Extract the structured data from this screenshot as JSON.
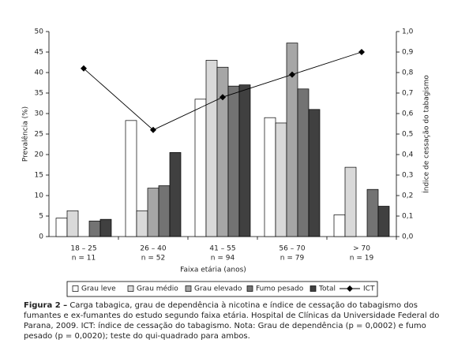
{
  "chart_data": {
    "type": "bar",
    "categories": [
      "18 – 25",
      "26 – 40",
      "41 – 55",
      "56 – 70",
      "> 70"
    ],
    "category_counts": [
      "n = 11",
      "n = 52",
      "n = 94",
      "n = 79",
      "n = 19"
    ],
    "xlabel": "Faixa etária (anos)",
    "ylabel": "Prevalência (%)",
    "y2label": "Índice de cessação do tabagismo",
    "ylim": [
      0,
      50
    ],
    "yticks": [
      0,
      5,
      10,
      15,
      20,
      25,
      30,
      35,
      40,
      45,
      50
    ],
    "y2lim": [
      0,
      1
    ],
    "y2ticks": [
      {
        "value": 0,
        "label": "0,0"
      },
      {
        "value": 0.1,
        "label": "0,1"
      },
      {
        "value": 0.2,
        "label": "0,2"
      },
      {
        "value": 0.3,
        "label": "0,3"
      },
      {
        "value": 0.4,
        "label": "0,4"
      },
      {
        "value": 0.5,
        "label": "0,5"
      },
      {
        "value": 0.6,
        "label": "0,6"
      },
      {
        "value": 0.7,
        "label": "0,7"
      },
      {
        "value": 0.8,
        "label": "0,8"
      },
      {
        "value": 0.9,
        "label": "0,9"
      },
      {
        "value": 1,
        "label": "1,0"
      }
    ],
    "series": [
      {
        "name": "Grau leve",
        "color": "#ffffff",
        "values": [
          4.5,
          28.3,
          33.5,
          29,
          5.3
        ]
      },
      {
        "name": "Grau médio",
        "color": "#d9d9d9",
        "values": [
          6.3,
          6.3,
          43,
          27.7,
          16.9
        ]
      },
      {
        "name": "Grau elevado",
        "color": "#a6a6a6",
        "values": [
          0,
          11.8,
          41.3,
          47.2,
          0
        ]
      },
      {
        "name": "Fumo pesado",
        "color": "#737373",
        "values": [
          3.8,
          12.4,
          36.7,
          36,
          11.5
        ]
      },
      {
        "name": "Total",
        "color": "#404040",
        "values": [
          4.2,
          20.5,
          37,
          31,
          7.4
        ]
      },
      {
        "name": "ICT",
        "color": "#000000",
        "type": "line",
        "axis": "y2",
        "values": [
          0.82,
          0.52,
          0.68,
          0.79,
          0.9
        ]
      }
    ]
  },
  "caption": {
    "label": "Figura 2 –",
    "text": "Carga tabagica, grau de dependência à nicotina e índice de cessação do tabagismo dos fumantes e ex-fumantes do estudo segundo faixa etária. Hospital de Clínicas da Universidade Federal do Parana, 2009. ICT: índice de cessação do tabagismo. Nota: Grau de dependência (p = 0,0002) e fumo pesado (p = 0,0020); teste do qui-quadrado para ambos."
  }
}
